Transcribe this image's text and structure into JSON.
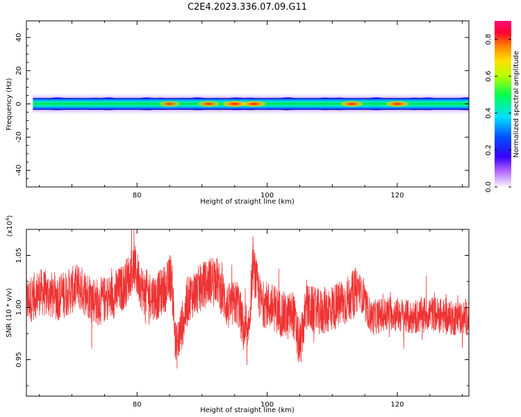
{
  "title": "C2E4.2023.336.07.09.G11",
  "colors": {
    "snr_line": "#ee3333",
    "axis": "#000000",
    "colormap": [
      "#f8f4ff",
      "#b060ff",
      "#3a00ff",
      "#0050ff",
      "#00e0ff",
      "#00ff50",
      "#b8ff00",
      "#ffe000",
      "#ff8000",
      "#ff0030",
      "#ff1078"
    ]
  },
  "chart_data": [
    {
      "type": "heatmap",
      "title": "C2E4.2023.336.07.09.G11",
      "xlabel": "Height of straight line (km)",
      "ylabel": "Frequency (Hz)",
      "xlim": [
        63,
        131
      ],
      "ylim": [
        -50,
        50
      ],
      "x_ticks": [
        80,
        100,
        120
      ],
      "y_ticks": [
        -40,
        -20,
        0,
        20,
        40
      ],
      "band": {
        "center_frequency": 0,
        "half_width": 3.5,
        "hotspots": [
          {
            "x": 85,
            "amplitude": 0.7
          },
          {
            "x": 91,
            "amplitude": 0.75
          },
          {
            "x": 95,
            "amplitude": 0.9
          },
          {
            "x": 98,
            "amplitude": 0.85
          },
          {
            "x": 113,
            "amplitude": 0.8
          },
          {
            "x": 120,
            "amplitude": 0.82
          }
        ]
      },
      "colorbar": {
        "label": "Normalized spectral amplitude",
        "range": [
          0,
          0.9
        ],
        "ticks": [
          0.0,
          0.2,
          0.4,
          0.6,
          0.8
        ]
      }
    },
    {
      "type": "line",
      "xlabel": "Height of straight line (km)",
      "ylabel": "SNR (10 * v/v)",
      "y_multiplier_label": "(x10",
      "y_multiplier_exp": "4",
      "y_multiplier_close": ")",
      "xlim": [
        63,
        131
      ],
      "ylim": [
        0.915,
        1.075
      ],
      "x_ticks": [
        80,
        100,
        120
      ],
      "y_ticks": [
        0.95,
        1.0,
        1.05
      ],
      "y_tick_labels": [
        "0.95",
        "1.00",
        "1.05"
      ],
      "series": [
        {
          "color": "#ee3333",
          "x": [
            63,
            65,
            68,
            71,
            74,
            76,
            78,
            79.5,
            81,
            83,
            84.5,
            85.3,
            86,
            88,
            90,
            92,
            94,
            95.5,
            96.5,
            97,
            97.8,
            99,
            101,
            103,
            104,
            105,
            106,
            108,
            110,
            112,
            113.5,
            114,
            116,
            119,
            122,
            125,
            128,
            131
          ],
          "y": [
            1.005,
            1.015,
            1.01,
            1.02,
            1.005,
            1.01,
            1.02,
            1.04,
            1.015,
            1.01,
            1.02,
            1.03,
            0.96,
            1.01,
            1.02,
            1.03,
            1.0,
            1.005,
            0.975,
            0.965,
            1.04,
            1.005,
            1.0,
            0.99,
            0.995,
            0.96,
            1.0,
            0.995,
            1.0,
            1.005,
            1.015,
            1.02,
            0.99,
            0.995,
            0.99,
            0.995,
            0.99,
            0.99
          ],
          "noise_amplitude": 0.02
        }
      ]
    }
  ]
}
